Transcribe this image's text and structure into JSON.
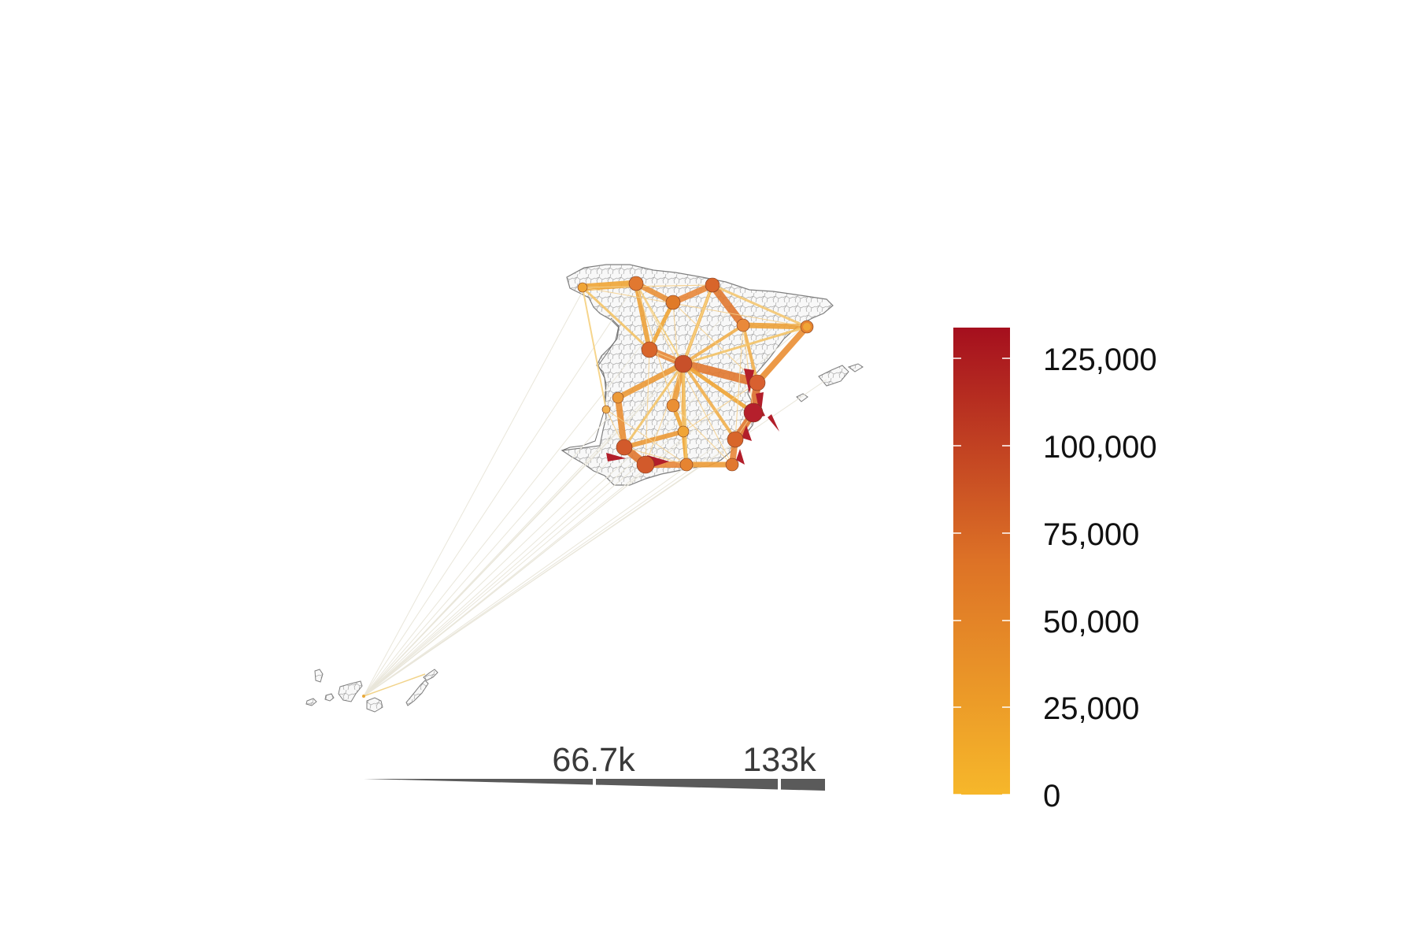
{
  "map": {
    "subject": "Spain municipal boundaries with flow network",
    "colors": {
      "land_fill": "#f7f7f7",
      "boundary": "#8c8c8c",
      "faint_flow": "#e6e3d6",
      "low": "#f6b72a",
      "mid": "#e07a28",
      "high": "#a50f1e"
    }
  },
  "legend": {
    "ticks": [
      "0",
      "25,000",
      "50,000",
      "75,000",
      "100,000",
      "125,000"
    ],
    "tick_values": [
      0,
      25000,
      50000,
      75000,
      100000,
      125000
    ],
    "max_value": 134000,
    "colors": {
      "low": "#f6b72a",
      "mid": "#dd7226",
      "high": "#a50f1e"
    }
  },
  "width_legend": {
    "labels": [
      "66.7k",
      "133k"
    ],
    "values": [
      66700,
      133000
    ],
    "color": "#5a5a5a"
  }
}
